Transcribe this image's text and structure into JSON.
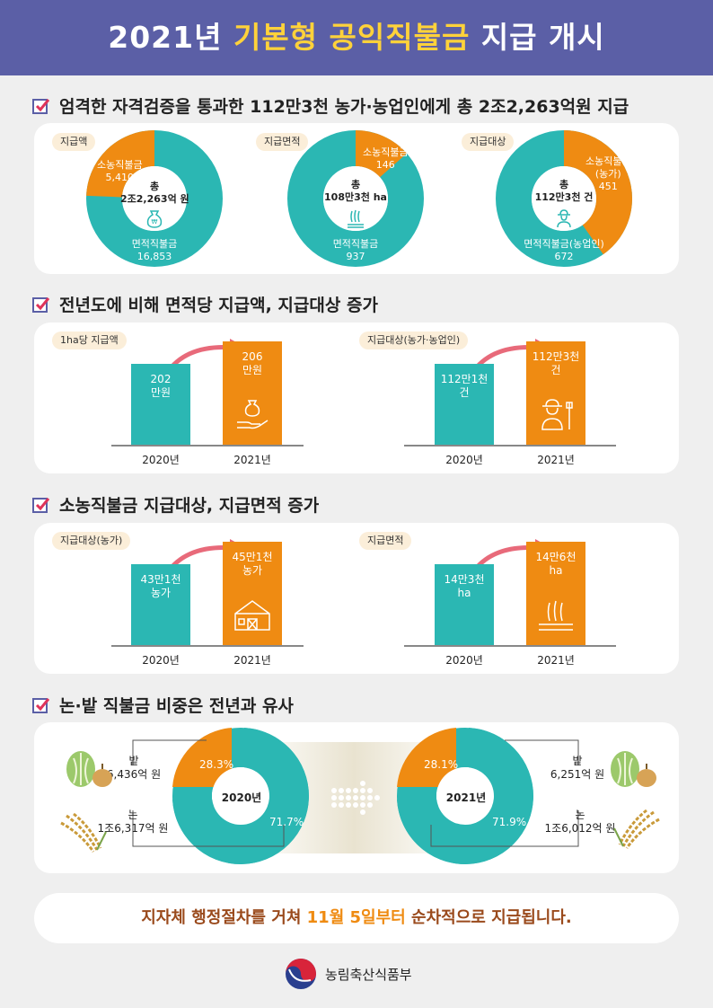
{
  "title": {
    "part1": "2021년 ",
    "part2": "기본형 공익직불금",
    "part3": " 지급 개시"
  },
  "section1": {
    "heading": "엄격한 자격검증을 통과한 112만3천 농가·농업인에게 총 2조2,263억원 지급",
    "charts": [
      {
        "pill": "지급액",
        "center_l1": "총",
        "center_l2": "2조2,263억 원",
        "small_label": "소농직불금",
        "small_value": "5,410",
        "large_label": "면적직불금",
        "large_value": "16,853",
        "icon": "money-bag-icon"
      },
      {
        "pill": "지급면적",
        "center_l1": "총",
        "center_l2": "108만3천 ha",
        "small_label": "소농직불금",
        "small_value": "146",
        "large_label": "면적직불금",
        "large_value": "937",
        "icon": "rice-field-icon"
      },
      {
        "pill": "지급대상",
        "center_l1": "총",
        "center_l2": "112만3천 건",
        "small_label": "소농직불금",
        "small_label2": "(농가)",
        "small_value": "451",
        "large_label": "면적직불금(농업인)",
        "large_value": "672",
        "icon": "farmer-icon"
      }
    ]
  },
  "section2": {
    "heading": "전년도에 비해 면적당 지급액, 지급대상 증가",
    "groups": [
      {
        "pill": "1ha당 지급액",
        "bar2020_l1": "202",
        "bar2020_l2": "만원",
        "bar2021_l1": "206",
        "bar2021_l2": "만원",
        "year1": "2020년",
        "year2": "2021년",
        "icon": "money-hand-icon"
      },
      {
        "pill": "지급대상(농가·농업인)",
        "bar2020_l1": "112만1천",
        "bar2020_l2": "건",
        "bar2021_l1": "112만3천",
        "bar2021_l2": "건",
        "year1": "2020년",
        "year2": "2021년",
        "icon": "farmer-icon"
      }
    ]
  },
  "section3": {
    "heading": "소농직불금 지급대상, 지급면적 증가",
    "groups": [
      {
        "pill": "지급대상(농가)",
        "bar2020_l1": "43만1천",
        "bar2020_l2": "농가",
        "bar2021_l1": "45만1천",
        "bar2021_l2": "농가",
        "year1": "2020년",
        "year2": "2021년",
        "icon": "barn-icon"
      },
      {
        "pill": "지급면적",
        "bar2020_l1": "14만3천",
        "bar2020_l2": "ha",
        "bar2021_l1": "14만6천",
        "bar2021_l2": "ha",
        "year1": "2020년",
        "year2": "2021년",
        "icon": "rice-field-icon"
      }
    ]
  },
  "section4": {
    "heading": "논·밭 직불금 비중은 전년과 유사",
    "y2020": {
      "year": "2020년",
      "bat_pct": "28.3%",
      "non_pct": "71.7%",
      "bat_label": "밭",
      "bat_value": "6,436억 원",
      "non_label": "논",
      "non_value": "1조6,317억 원"
    },
    "y2021": {
      "year": "2021년",
      "bat_pct": "28.1%",
      "non_pct": "71.9%",
      "bat_label": "밭",
      "bat_value": "6,251억 원",
      "non_label": "논",
      "non_value": "1조6,012억 원"
    }
  },
  "footer": {
    "part1": "지자체 행정절차를 거쳐 ",
    "part2": "11월 5일부터",
    "part3": " 순차적으로 지급됩니다."
  },
  "ministry": "농림축산식품부",
  "colors": {
    "banner": "#5b5fa6",
    "teal": "#2bb7b3",
    "orange": "#ef8b12",
    "highlight": "#ffd23a"
  }
}
